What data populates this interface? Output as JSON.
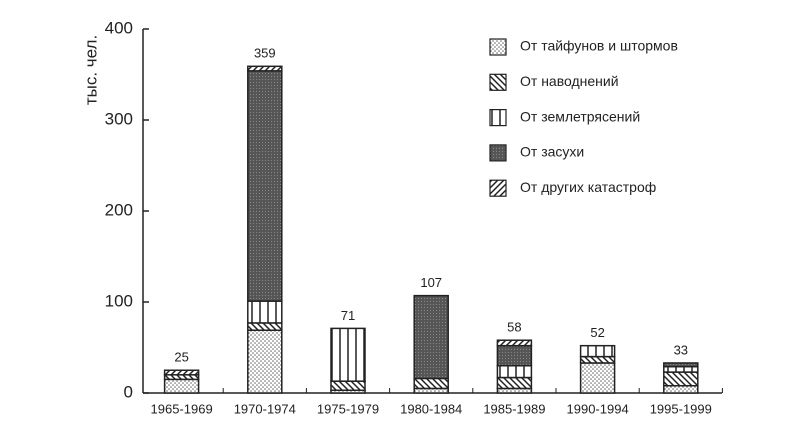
{
  "chart_data": {
    "type": "stacked_bar",
    "y_label": "тыс. чел.",
    "categories": [
      "1965-1969",
      "1970-1974",
      "1975-1979",
      "1980-1984",
      "1985-1989",
      "1990-1994",
      "1995-1999"
    ],
    "series": [
      {
        "name": "От тайфунов и штормов",
        "values": [
          15,
          69,
          3,
          5,
          5,
          33,
          8
        ]
      },
      {
        "name": "От наводнений",
        "values": [
          5,
          8,
          10,
          11,
          12,
          7,
          15
        ]
      },
      {
        "name": "От землетрясений",
        "values": [
          0,
          24,
          58,
          0,
          13,
          12,
          6
        ]
      },
      {
        "name": "От засухи",
        "values": [
          0,
          253,
          0,
          91,
          22,
          0,
          4
        ]
      },
      {
        "name": "От других катастроф",
        "values": [
          5,
          5,
          0,
          0,
          6,
          0,
          0
        ]
      }
    ],
    "totals": [
      25,
      359,
      71,
      107,
      58,
      52,
      33
    ],
    "ylim": [
      0,
      400
    ],
    "yticks": [
      0,
      100,
      200,
      300,
      400
    ]
  }
}
